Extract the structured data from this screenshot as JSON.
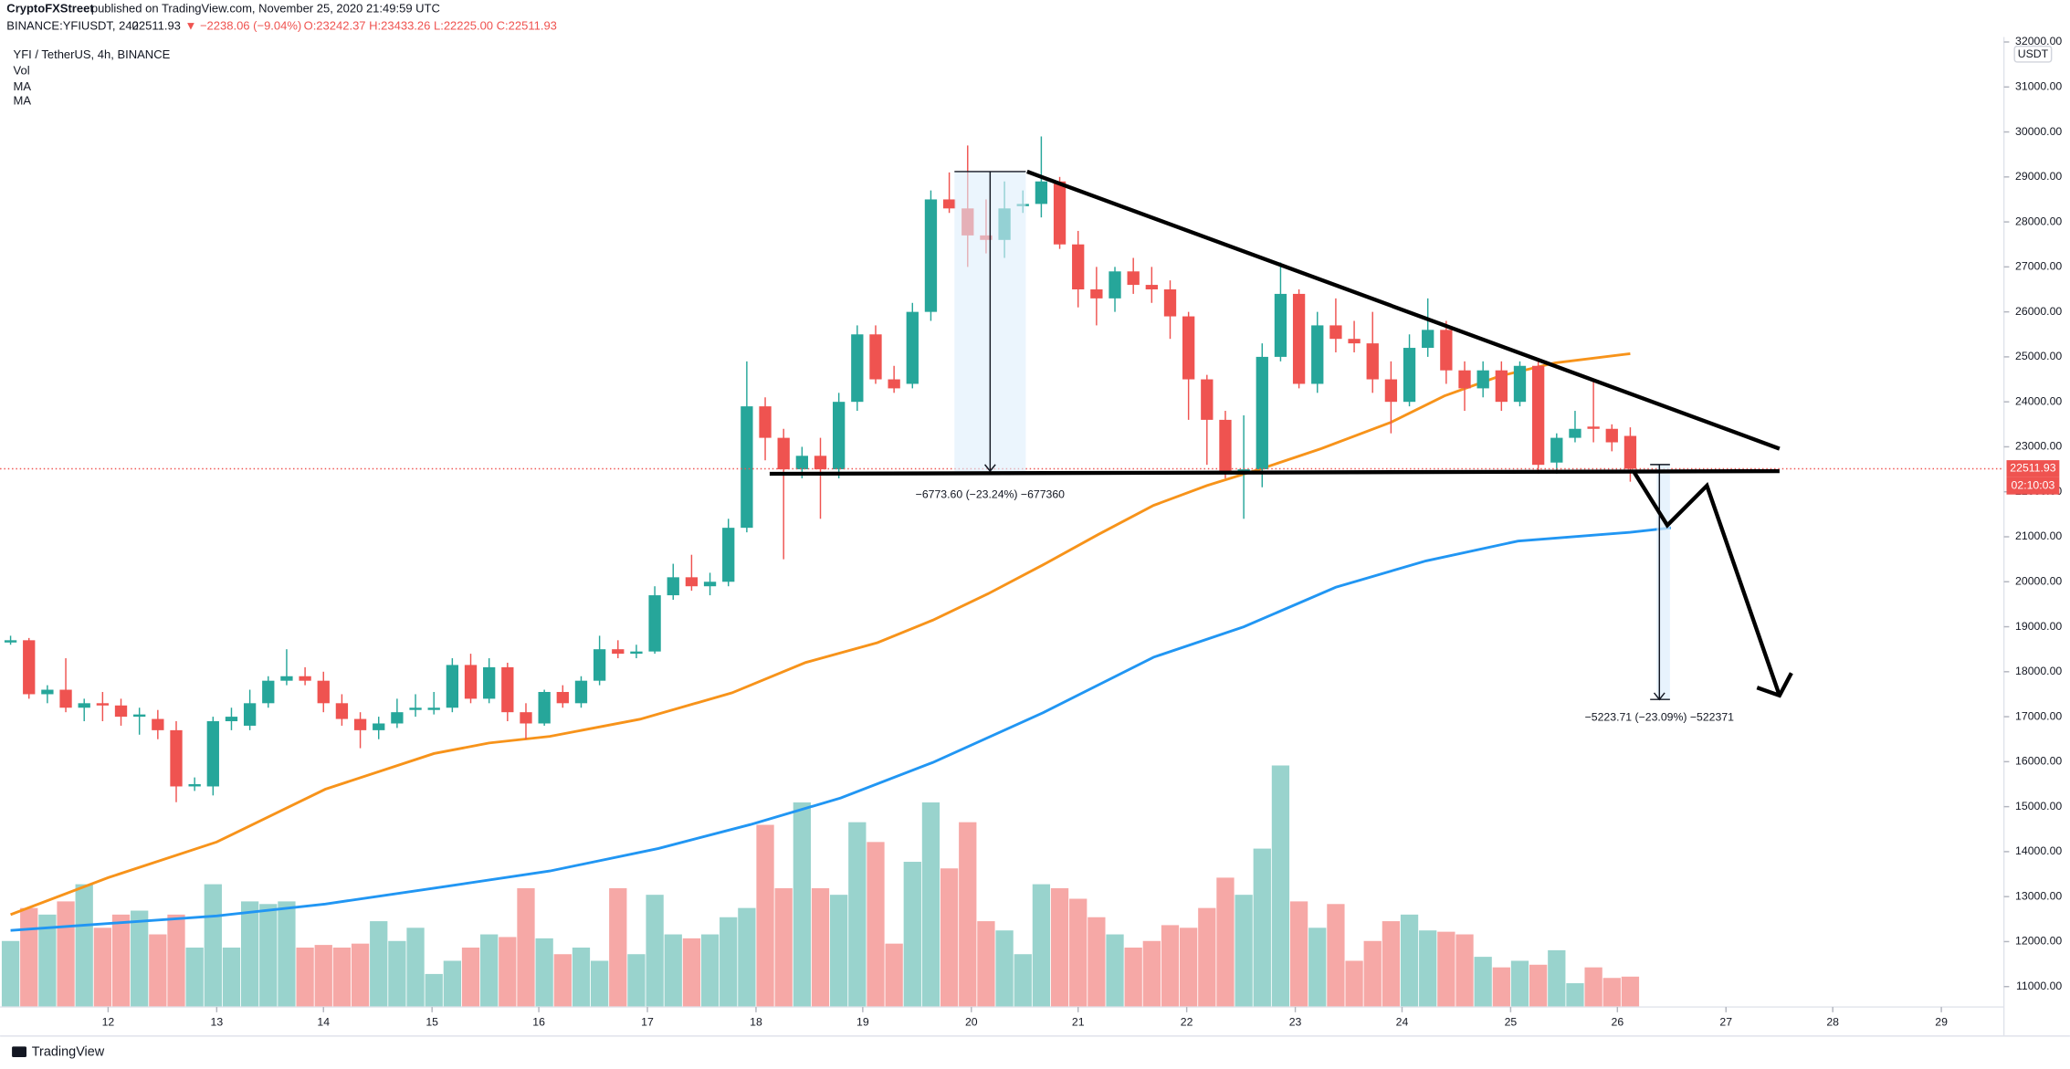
{
  "header": {
    "author": "CryptoFXStreet",
    "published": "published on TradingView.com, November 25, 2020 21:49:59 UTC",
    "symbol": "BINANCE:YFIUSDT, 240",
    "last": "22511.93",
    "change": "▼ −2238.06 (−9.04%)",
    "ohlc": "O:23242.37 H:23433.26 L:22225.00 C:22511.93"
  },
  "legend_title": "YFI / TetherUS, 4h, BINANCE",
  "footer": "TradingView",
  "chart_data": {
    "type": "candlestick",
    "currency": "USDT",
    "countdown": "02:10:03",
    "up_color": "#26a69a",
    "down_color": "#ef5350",
    "up_volume_color": "#99d3cd",
    "down_volume_color": "#f6a8a6",
    "volume_name": "Vol",
    "candles": [
      [
        18650,
        18800,
        18600,
        18700
      ],
      [
        18700,
        18750,
        17400,
        17500
      ],
      [
        17500,
        17700,
        17300,
        17600
      ],
      [
        17600,
        18300,
        17100,
        17200
      ],
      [
        17200,
        17400,
        16900,
        17300
      ],
      [
        17300,
        17550,
        16900,
        17250
      ],
      [
        17250,
        17400,
        16800,
        17000
      ],
      [
        17000,
        17200,
        16600,
        17050
      ],
      [
        16950,
        17150,
        16500,
        16700
      ],
      [
        16700,
        16900,
        15100,
        15450
      ],
      [
        15450,
        15650,
        15350,
        15500
      ],
      [
        15450,
        17000,
        15250,
        16900
      ],
      [
        16900,
        17200,
        16700,
        17000
      ],
      [
        16800,
        17600,
        16700,
        17300
      ],
      [
        17300,
        17900,
        17200,
        17800
      ],
      [
        17800,
        18500,
        17700,
        17900
      ],
      [
        17900,
        18100,
        17700,
        17800
      ],
      [
        17800,
        18000,
        17100,
        17300
      ],
      [
        17300,
        17500,
        16800,
        16950
      ],
      [
        16950,
        17100,
        16300,
        16700
      ],
      [
        16700,
        17000,
        16500,
        16850
      ],
      [
        16850,
        17400,
        16750,
        17100
      ],
      [
        17150,
        17500,
        17000,
        17200
      ],
      [
        17150,
        17550,
        17050,
        17200
      ],
      [
        17200,
        18300,
        17100,
        18150
      ],
      [
        18150,
        18400,
        17300,
        17400
      ],
      [
        17400,
        18300,
        17300,
        18100
      ],
      [
        18100,
        18200,
        16900,
        17100
      ],
      [
        17100,
        17300,
        16500,
        16850
      ],
      [
        16850,
        17600,
        16800,
        17550
      ],
      [
        17550,
        17700,
        17200,
        17300
      ],
      [
        17300,
        17900,
        17200,
        17800
      ],
      [
        17800,
        18800,
        17700,
        18500
      ],
      [
        18500,
        18700,
        18300,
        18400
      ],
      [
        18400,
        18600,
        18300,
        18450
      ],
      [
        18450,
        19900,
        18400,
        19700
      ],
      [
        19700,
        20400,
        19600,
        20100
      ],
      [
        20100,
        20600,
        19800,
        19900
      ],
      [
        19900,
        20200,
        19700,
        20000
      ],
      [
        20000,
        21400,
        19900,
        21200
      ],
      [
        21200,
        24900,
        21100,
        23900
      ],
      [
        23900,
        24100,
        22700,
        23200
      ],
      [
        23200,
        23400,
        20500,
        22500
      ],
      [
        22500,
        23000,
        22300,
        22800
      ],
      [
        22800,
        23200,
        21400,
        22500
      ],
      [
        22500,
        24200,
        22300,
        24000
      ],
      [
        24000,
        25700,
        23800,
        25500
      ],
      [
        25500,
        25700,
        24400,
        24500
      ],
      [
        24500,
        24800,
        24200,
        24300
      ],
      [
        24400,
        26200,
        24300,
        26000
      ],
      [
        26000,
        28700,
        25800,
        28500
      ],
      [
        28500,
        29100,
        28200,
        28300
      ],
      [
        28300,
        29700,
        27000,
        27700
      ],
      [
        27700,
        28500,
        27300,
        27600
      ],
      [
        27600,
        28900,
        27200,
        28300
      ],
      [
        28350,
        28700,
        28200,
        28400
      ],
      [
        28400,
        29900,
        28100,
        28900
      ],
      [
        28900,
        29000,
        27400,
        27500
      ],
      [
        27500,
        27800,
        26100,
        26500
      ],
      [
        26500,
        27000,
        25700,
        26300
      ],
      [
        26300,
        27000,
        26000,
        26900
      ],
      [
        26900,
        27200,
        26400,
        26600
      ],
      [
        26600,
        27000,
        26200,
        26500
      ],
      [
        26500,
        26700,
        25400,
        25900
      ],
      [
        25900,
        26000,
        23600,
        24500
      ],
      [
        24500,
        24600,
        22600,
        23600
      ],
      [
        23600,
        23800,
        22300,
        22400
      ],
      [
        22400,
        23700,
        21400,
        22500
      ],
      [
        22500,
        25300,
        22100,
        25000
      ],
      [
        25000,
        27100,
        24900,
        26400
      ],
      [
        26400,
        26500,
        24300,
        24400
      ],
      [
        24400,
        26000,
        24200,
        25700
      ],
      [
        25700,
        26300,
        25100,
        25400
      ],
      [
        25400,
        25800,
        25100,
        25300
      ],
      [
        25300,
        26000,
        24200,
        24500
      ],
      [
        24500,
        24900,
        23300,
        24000
      ],
      [
        24000,
        25500,
        23900,
        25200
      ],
      [
        25200,
        26300,
        25000,
        25600
      ],
      [
        25600,
        25800,
        24400,
        24700
      ],
      [
        24700,
        24900,
        23800,
        24300
      ],
      [
        24300,
        24900,
        24100,
        24700
      ],
      [
        24700,
        24900,
        23800,
        24000
      ],
      [
        24000,
        24900,
        23900,
        24800
      ],
      [
        24800,
        24900,
        22400,
        22600
      ],
      [
        22650,
        23300,
        22400,
        23200
      ],
      [
        23200,
        23800,
        23100,
        23400
      ],
      [
        23450,
        24500,
        23100,
        23400
      ],
      [
        23400,
        23500,
        22900,
        23100
      ],
      [
        23242.37,
        23433.26,
        22225.0,
        22511.93
      ]
    ],
    "volumes": [
      50,
      75,
      70,
      80,
      93,
      60,
      70,
      73,
      55,
      70,
      45,
      93,
      45,
      80,
      78,
      80,
      45,
      47,
      45,
      48,
      65,
      50,
      60,
      25,
      35,
      45,
      55,
      53,
      90,
      52,
      40,
      45,
      35,
      90,
      40,
      85,
      55,
      52,
      55,
      68,
      75,
      138,
      90,
      155,
      90,
      85,
      140,
      125,
      48,
      110,
      155,
      105,
      140,
      65,
      58,
      40,
      93,
      90,
      82,
      68,
      55,
      45,
      50,
      62,
      60,
      75,
      98,
      85,
      120,
      183,
      80,
      60,
      78,
      35,
      50,
      65,
      70,
      58,
      57,
      55,
      38,
      30,
      35,
      32,
      43,
      18,
      30,
      22,
      23
    ],
    "volume_ylim": [
      0,
      200
    ],
    "series": [
      {
        "name": "MA",
        "color": "#f7931a",
        "x": [
          0,
          5.3,
          11.2,
          17.1,
          23,
          26,
          29.3,
          34.2,
          39.2,
          43.2,
          47.1,
          50.1,
          53.1,
          56.1,
          59.1,
          62.1,
          65,
          68,
          71.2,
          75,
          77.9,
          80.9,
          83.9,
          88
        ],
        "values": [
          12600,
          13422,
          14215,
          15388,
          16181,
          16416,
          16563,
          16944,
          17531,
          18206,
          18646,
          19145,
          19732,
          20377,
          21052,
          21698,
          22138,
          22519,
          22959,
          23546,
          24132,
          24572,
          24866,
          25071
        ]
      },
      {
        "name": "MA",
        "color": "#2196f3",
        "x": [
          0,
          11.2,
          17.1,
          23,
          29.3,
          35.2,
          40.2,
          45.1,
          50.1,
          56.1,
          62.1,
          67,
          72,
          76.9,
          81.9,
          88,
          90.2
        ],
        "values": [
          12249,
          12572,
          12836,
          13188,
          13570,
          14071,
          14603,
          15193,
          15982,
          17090,
          18323,
          18998,
          19878,
          20464,
          20905,
          21100,
          21198
        ]
      }
    ],
    "annotations": [
      "−6773.60 (−23.24%) −677360",
      "−5223.71 (−23.09%) −522371"
    ],
    "xlim": [
      -0.57,
      108.3
    ],
    "ylim": [
      10547,
      32112
    ],
    "xticks": [
      {
        "value": 5.3,
        "label": "12"
      },
      {
        "value": 11.2,
        "label": "13"
      },
      {
        "value": 17,
        "label": "14"
      },
      {
        "value": 22.9,
        "label": "15"
      },
      {
        "value": 28.7,
        "label": "16"
      },
      {
        "value": 34.6,
        "label": "17"
      },
      {
        "value": 40.5,
        "label": "18"
      },
      {
        "value": 46.3,
        "label": "19"
      },
      {
        "value": 52.2,
        "label": "20"
      },
      {
        "value": 58,
        "label": "21"
      },
      {
        "value": 63.9,
        "label": "22"
      },
      {
        "value": 69.8,
        "label": "23"
      },
      {
        "value": 75.6,
        "label": "24"
      },
      {
        "value": 81.5,
        "label": "25"
      },
      {
        "value": 87.3,
        "label": "26"
      },
      {
        "value": 93.2,
        "label": "27"
      },
      {
        "value": 99,
        "label": "28"
      },
      {
        "value": 104.9,
        "label": "29"
      }
    ],
    "yticks": [
      {
        "value": 11000,
        "label": "11000.00"
      },
      {
        "value": 12000,
        "label": "12000.00"
      },
      {
        "value": 13000,
        "label": "13000.00"
      },
      {
        "value": 14000,
        "label": "14000.00"
      },
      {
        "value": 15000,
        "label": "15000.00"
      },
      {
        "value": 16000,
        "label": "16000.00"
      },
      {
        "value": 17000,
        "label": "17000.00"
      },
      {
        "value": 18000,
        "label": "18000.00"
      },
      {
        "value": 19000,
        "label": "19000.00"
      },
      {
        "value": 20000,
        "label": "20000.00"
      },
      {
        "value": 21000,
        "label": "21000.00"
      },
      {
        "value": 22000,
        "label": "22000.00"
      },
      {
        "value": 23000,
        "label": "23000.00"
      },
      {
        "value": 24000,
        "label": "24000.00"
      },
      {
        "value": 25000,
        "label": "25000.00"
      },
      {
        "value": 26000,
        "label": "26000.00"
      },
      {
        "value": 27000,
        "label": "27000.00"
      },
      {
        "value": 28000,
        "label": "28000.00"
      },
      {
        "value": 29000,
        "label": "29000.00"
      },
      {
        "value": 30000,
        "label": "30000.00"
      },
      {
        "value": 31000,
        "label": "31000.00"
      },
      {
        "value": 32000,
        "label": "32000.00"
      }
    ],
    "grid": false
  }
}
